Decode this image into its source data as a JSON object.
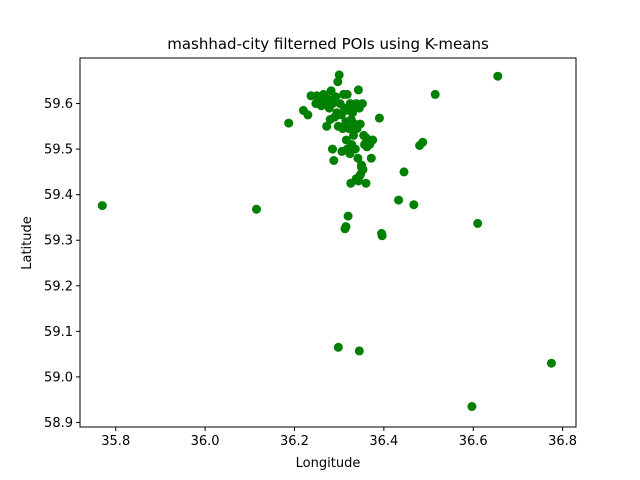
{
  "chart_data": {
    "type": "scatter",
    "title": "mashhad-city filterned POIs using K-means",
    "xlabel": "Longitude",
    "ylabel": "Latitude",
    "xlim": [
      35.72,
      36.83
    ],
    "ylim": [
      58.89,
      59.7
    ],
    "xticks": [
      35.8,
      36.0,
      36.2,
      36.4,
      36.6,
      36.8
    ],
    "xtick_labels": [
      "35.8",
      "36.0",
      "36.2",
      "36.4",
      "36.6",
      "36.8"
    ],
    "yticks": [
      58.9,
      59.0,
      59.1,
      59.2,
      59.3,
      59.4,
      59.5,
      59.6
    ],
    "ytick_labels": [
      "58.9",
      "59.0",
      "59.1",
      "59.2",
      "59.3",
      "59.4",
      "59.5",
      "59.6"
    ],
    "grid": false,
    "marker_color": "#008000",
    "points": [
      [
        35.77,
        59.376
      ],
      [
        36.115,
        59.368
      ],
      [
        36.187,
        59.557
      ],
      [
        36.22,
        59.585
      ],
      [
        36.23,
        59.575
      ],
      [
        36.237,
        59.617
      ],
      [
        36.248,
        59.6
      ],
      [
        36.25,
        59.617
      ],
      [
        36.255,
        59.61
      ],
      [
        36.26,
        59.595
      ],
      [
        36.265,
        59.62
      ],
      [
        36.268,
        59.605
      ],
      [
        36.272,
        59.55
      ],
      [
        36.275,
        59.61
      ],
      [
        36.278,
        59.59
      ],
      [
        36.28,
        59.565
      ],
      [
        36.282,
        59.628
      ],
      [
        36.285,
        59.6
      ],
      [
        36.285,
        59.5
      ],
      [
        36.288,
        59.475
      ],
      [
        36.29,
        59.57
      ],
      [
        36.292,
        59.615
      ],
      [
        36.295,
        59.58
      ],
      [
        36.297,
        59.648
      ],
      [
        36.298,
        59.55
      ],
      [
        36.3,
        59.663
      ],
      [
        36.302,
        59.6
      ],
      [
        36.305,
        59.575
      ],
      [
        36.306,
        59.495
      ],
      [
        36.308,
        59.545
      ],
      [
        36.31,
        59.62
      ],
      [
        36.312,
        59.59
      ],
      [
        36.315,
        59.56
      ],
      [
        36.316,
        59.52
      ],
      [
        36.318,
        59.5
      ],
      [
        36.318,
        59.62
      ],
      [
        36.32,
        59.585
      ],
      [
        36.322,
        59.545
      ],
      [
        36.324,
        59.49
      ],
      [
        36.325,
        59.6
      ],
      [
        36.327,
        59.565
      ],
      [
        36.328,
        59.51
      ],
      [
        36.33,
        59.58
      ],
      [
        36.332,
        59.53
      ],
      [
        36.334,
        59.595
      ],
      [
        36.335,
        59.555
      ],
      [
        36.336,
        59.5
      ],
      [
        36.338,
        59.6
      ],
      [
        36.34,
        59.545
      ],
      [
        36.342,
        59.48
      ],
      [
        36.343,
        59.63
      ],
      [
        36.345,
        59.59
      ],
      [
        36.347,
        59.555
      ],
      [
        36.348,
        59.445
      ],
      [
        36.35,
        59.465
      ],
      [
        36.352,
        59.6
      ],
      [
        36.353,
        59.455
      ],
      [
        36.355,
        59.53
      ],
      [
        36.357,
        59.51
      ],
      [
        36.36,
        59.525
      ],
      [
        36.362,
        59.505
      ],
      [
        36.365,
        59.52
      ],
      [
        36.368,
        59.51
      ],
      [
        36.37,
        59.515
      ],
      [
        36.372,
        59.48
      ],
      [
        36.375,
        59.52
      ],
      [
        36.39,
        59.568
      ],
      [
        36.326,
        59.425
      ],
      [
        36.338,
        59.435
      ],
      [
        36.343,
        59.43
      ],
      [
        36.345,
        59.44
      ],
      [
        36.35,
        59.46
      ],
      [
        36.36,
        59.425
      ],
      [
        36.32,
        59.353
      ],
      [
        36.313,
        59.325
      ],
      [
        36.315,
        59.33
      ],
      [
        36.395,
        59.315
      ],
      [
        36.396,
        59.31
      ],
      [
        36.433,
        59.388
      ],
      [
        36.445,
        59.45
      ],
      [
        36.467,
        59.378
      ],
      [
        36.48,
        59.508
      ],
      [
        36.487,
        59.515
      ],
      [
        36.515,
        59.62
      ],
      [
        36.61,
        59.337
      ],
      [
        36.655,
        59.66
      ],
      [
        36.298,
        59.065
      ],
      [
        36.345,
        59.057
      ],
      [
        36.775,
        59.03
      ],
      [
        36.597,
        58.935
      ]
    ]
  }
}
